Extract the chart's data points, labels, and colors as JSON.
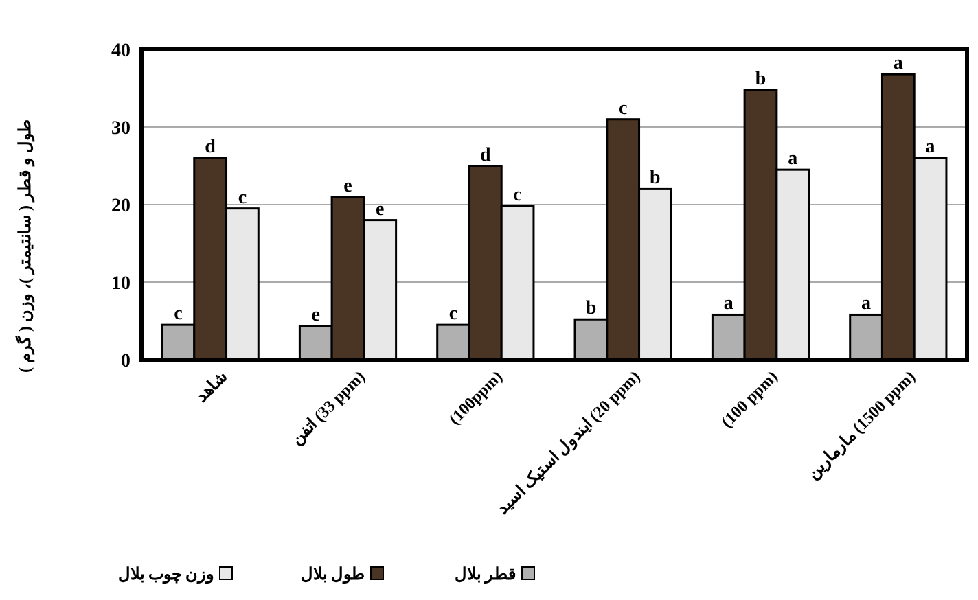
{
  "chart_data": {
    "type": "bar",
    "ylabel": "طول و قطر ( سانتیمتر )، وزن ( گرم )",
    "categories": [
      "شاهد",
      "اتفن (33 ppm)",
      "(100ppm)",
      "ایندول استیک اسید (20 ppm)",
      "(100 ppm)",
      "مارمارین (1500 ppm)"
    ],
    "series": [
      {
        "name": "قطر بلال",
        "color": "#b0b0b0",
        "values": [
          4.5,
          4.3,
          4.5,
          5.2,
          5.8,
          5.8
        ],
        "value_labels": [
          "c",
          "e",
          "c",
          "b",
          "a",
          "a"
        ]
      },
      {
        "name": "طول بلال",
        "color": "#4a3524",
        "values": [
          26,
          21,
          25,
          31,
          34.8,
          36.8
        ],
        "value_labels": [
          "d",
          "e",
          "d",
          "c",
          "b",
          "a"
        ]
      },
      {
        "name": "وزن چوب بلال",
        "color": "#e8e8e8",
        "values": [
          19.5,
          18,
          19.8,
          22,
          24.5,
          26
        ],
        "value_labels": [
          "c",
          "e",
          "c",
          "b",
          "a",
          "a"
        ]
      }
    ],
    "ylim": [
      0,
      40
    ],
    "yticks": [
      0,
      10,
      20,
      30,
      40
    ],
    "grid": "y",
    "legend": "bottom"
  }
}
